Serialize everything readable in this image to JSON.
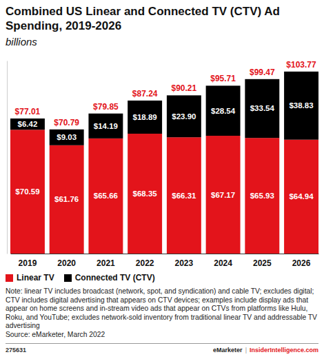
{
  "chart_data": {
    "type": "bar",
    "title": "Combined US Linear and Connected TV (CTV) Ad Spending, 2019-2026",
    "subtitle": "billions",
    "categories": [
      "2019",
      "2020",
      "2021",
      "2022",
      "2023",
      "2024",
      "2025",
      "2026"
    ],
    "series": [
      {
        "name": "Linear TV",
        "color": "#e3141b",
        "values": [
          70.59,
          61.76,
          65.66,
          68.35,
          66.31,
          67.17,
          65.93,
          64.94
        ],
        "value_labels": [
          "$70.59",
          "$61.76",
          "$65.66",
          "$68.35",
          "$66.31",
          "$67.17",
          "$65.93",
          "$64.94"
        ]
      },
      {
        "name": "Connected TV (CTV)",
        "color": "#000000",
        "values": [
          6.42,
          9.03,
          14.19,
          18.89,
          23.9,
          28.54,
          33.54,
          38.83
        ],
        "value_labels": [
          "$6.42",
          "$9.03",
          "$14.19",
          "$18.89",
          "$23.90",
          "$28.54",
          "$33.54",
          "$38.83"
        ]
      }
    ],
    "totals": [
      77.01,
      70.79,
      79.85,
      87.24,
      90.21,
      95.71,
      99.47,
      103.77
    ],
    "total_labels": [
      "$77.01",
      "$70.79",
      "$79.85",
      "$87.24",
      "$90.21",
      "$95.71",
      "$99.47",
      "$103.77"
    ],
    "stacked": true,
    "data_labels": true,
    "tick_labels": "x",
    "legend": "bottom-left",
    "ylim": [
      0,
      110
    ],
    "note": "Note: linear TV includes broadcast (network, spot, and syndication) and cable TV; excludes digital; CTV includes digital advertising that appears on CTV devices; examples include display ads that appear on home screens and in-stream video ads that appear on CTVs from platforms like Hulu, Roku, and YouTube; excludes network-sold inventory from traditional linear TV and addressable TV advertising",
    "source": "Source: eMarketer, March 2022",
    "chart_id": "275631",
    "footer": [
      "eMarketer",
      "|",
      "InsiderIntelligence.com"
    ]
  }
}
